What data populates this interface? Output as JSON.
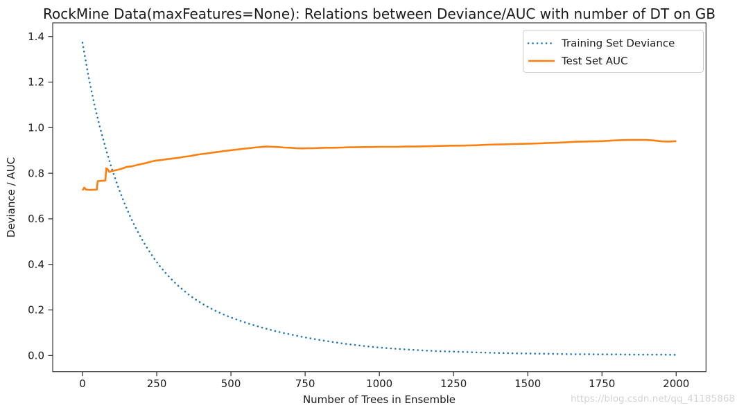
{
  "watermark": {
    "text": "https://blog.csdn.net/qq_41185868"
  },
  "chart_data": {
    "type": "line",
    "title": "RockMine Data(maxFeatures=None): Relations between Deviance/AUC with number of DT on GB",
    "xlabel": "Number of Trees in Ensemble",
    "ylabel": "Deviance / AUC",
    "xlim": [
      -100.5,
      2100.5
    ],
    "ylim": [
      -0.071,
      1.46
    ],
    "grid": false,
    "legend_position": "upper right",
    "xticks": {
      "values": [
        0,
        250,
        500,
        750,
        1000,
        1250,
        1500,
        1750,
        2000
      ],
      "labels": [
        "0",
        "250",
        "500",
        "750",
        "1000",
        "1250",
        "1500",
        "1750",
        "2000"
      ]
    },
    "yticks": {
      "values": [
        0.0,
        0.2,
        0.4,
        0.6,
        0.8,
        1.0,
        1.2,
        1.4
      ],
      "labels": [
        "0.0",
        "0.2",
        "0.4",
        "0.6",
        "0.8",
        "1.0",
        "1.2",
        "1.4"
      ]
    },
    "series": [
      {
        "name": "Training Set Deviance",
        "color": "#1f77b4",
        "style": "dotted",
        "points": [
          [
            0,
            1.373
          ],
          [
            20,
            1.225
          ],
          [
            40,
            1.1
          ],
          [
            60,
            0.995
          ],
          [
            80,
            0.9
          ],
          [
            100,
            0.815
          ],
          [
            120,
            0.74
          ],
          [
            140,
            0.672
          ],
          [
            160,
            0.612
          ],
          [
            180,
            0.558
          ],
          [
            200,
            0.51
          ],
          [
            220,
            0.467
          ],
          [
            240,
            0.428
          ],
          [
            260,
            0.393
          ],
          [
            280,
            0.362
          ],
          [
            300,
            0.334
          ],
          [
            320,
            0.309
          ],
          [
            340,
            0.286
          ],
          [
            360,
            0.265
          ],
          [
            380,
            0.247
          ],
          [
            400,
            0.23
          ],
          [
            425,
            0.211
          ],
          [
            450,
            0.195
          ],
          [
            475,
            0.18
          ],
          [
            500,
            0.167
          ],
          [
            530,
            0.153
          ],
          [
            560,
            0.14
          ],
          [
            590,
            0.128
          ],
          [
            620,
            0.117
          ],
          [
            650,
            0.107
          ],
          [
            680,
            0.098
          ],
          [
            710,
            0.09
          ],
          [
            740,
            0.082
          ],
          [
            770,
            0.075
          ],
          [
            800,
            0.068
          ],
          [
            840,
            0.06
          ],
          [
            880,
            0.052
          ],
          [
            920,
            0.046
          ],
          [
            960,
            0.04
          ],
          [
            1000,
            0.035
          ],
          [
            1050,
            0.03
          ],
          [
            1100,
            0.026
          ],
          [
            1150,
            0.022
          ],
          [
            1200,
            0.019
          ],
          [
            1250,
            0.017
          ],
          [
            1300,
            0.015
          ],
          [
            1350,
            0.013
          ],
          [
            1400,
            0.011
          ],
          [
            1450,
            0.01
          ],
          [
            1500,
            0.009
          ],
          [
            1550,
            0.008
          ],
          [
            1600,
            0.007
          ],
          [
            1650,
            0.006
          ],
          [
            1700,
            0.006
          ],
          [
            1750,
            0.005
          ],
          [
            1800,
            0.005
          ],
          [
            1850,
            0.004
          ],
          [
            1900,
            0.004
          ],
          [
            1950,
            0.004
          ],
          [
            2000,
            0.003
          ]
        ]
      },
      {
        "name": "Test Set AUC",
        "color": "#ff7f0e",
        "style": "solid",
        "points": [
          [
            0,
            0.725
          ],
          [
            6,
            0.737
          ],
          [
            12,
            0.728
          ],
          [
            25,
            0.727
          ],
          [
            48,
            0.728
          ],
          [
            51,
            0.765
          ],
          [
            60,
            0.766
          ],
          [
            77,
            0.768
          ],
          [
            80,
            0.822
          ],
          [
            85,
            0.817
          ],
          [
            90,
            0.806
          ],
          [
            100,
            0.81
          ],
          [
            115,
            0.814
          ],
          [
            130,
            0.819
          ],
          [
            150,
            0.828
          ],
          [
            165,
            0.83
          ],
          [
            180,
            0.835
          ],
          [
            200,
            0.841
          ],
          [
            215,
            0.845
          ],
          [
            230,
            0.851
          ],
          [
            250,
            0.856
          ],
          [
            265,
            0.858
          ],
          [
            280,
            0.861
          ],
          [
            300,
            0.864
          ],
          [
            320,
            0.867
          ],
          [
            340,
            0.872
          ],
          [
            360,
            0.875
          ],
          [
            380,
            0.88
          ],
          [
            400,
            0.884
          ],
          [
            420,
            0.887
          ],
          [
            440,
            0.891
          ],
          [
            460,
            0.894
          ],
          [
            480,
            0.898
          ],
          [
            500,
            0.901
          ],
          [
            520,
            0.904
          ],
          [
            540,
            0.907
          ],
          [
            560,
            0.91
          ],
          [
            580,
            0.913
          ],
          [
            600,
            0.915
          ],
          [
            620,
            0.917
          ],
          [
            640,
            0.916
          ],
          [
            660,
            0.915
          ],
          [
            680,
            0.913
          ],
          [
            700,
            0.912
          ],
          [
            720,
            0.91
          ],
          [
            740,
            0.909
          ],
          [
            760,
            0.91
          ],
          [
            780,
            0.91
          ],
          [
            800,
            0.911
          ],
          [
            825,
            0.912
          ],
          [
            850,
            0.912
          ],
          [
            875,
            0.913
          ],
          [
            900,
            0.914
          ],
          [
            925,
            0.914
          ],
          [
            950,
            0.915
          ],
          [
            975,
            0.915
          ],
          [
            1000,
            0.916
          ],
          [
            1030,
            0.916
          ],
          [
            1060,
            0.916
          ],
          [
            1090,
            0.917
          ],
          [
            1120,
            0.917
          ],
          [
            1150,
            0.918
          ],
          [
            1180,
            0.919
          ],
          [
            1210,
            0.92
          ],
          [
            1240,
            0.921
          ],
          [
            1270,
            0.921
          ],
          [
            1300,
            0.922
          ],
          [
            1330,
            0.923
          ],
          [
            1360,
            0.925
          ],
          [
            1390,
            0.926
          ],
          [
            1420,
            0.927
          ],
          [
            1450,
            0.928
          ],
          [
            1480,
            0.929
          ],
          [
            1510,
            0.93
          ],
          [
            1540,
            0.931
          ],
          [
            1570,
            0.933
          ],
          [
            1600,
            0.934
          ],
          [
            1630,
            0.936
          ],
          [
            1660,
            0.938
          ],
          [
            1690,
            0.939
          ],
          [
            1720,
            0.94
          ],
          [
            1750,
            0.941
          ],
          [
            1780,
            0.943
          ],
          [
            1810,
            0.945
          ],
          [
            1840,
            0.946
          ],
          [
            1870,
            0.946
          ],
          [
            1900,
            0.946
          ],
          [
            1925,
            0.944
          ],
          [
            1950,
            0.94
          ],
          [
            1975,
            0.939
          ],
          [
            2000,
            0.941
          ]
        ]
      }
    ]
  }
}
